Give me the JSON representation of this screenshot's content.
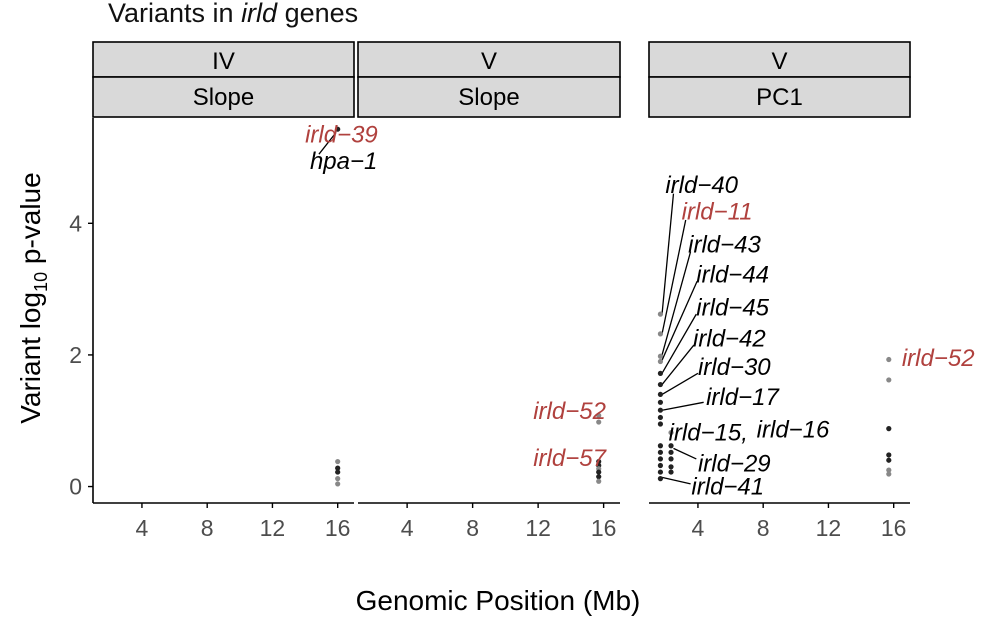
{
  "title": {
    "prefix": "Variants in ",
    "italic": "irld",
    "suffix": " genes"
  },
  "colors": {
    "highlight": "#b0413e",
    "point_dark": "#222222",
    "point_light": "#888888",
    "strip_fill": "#d9d9d9",
    "text": "#000000",
    "tick_text": "#4d4d4d"
  },
  "chart_data": {
    "type": "scatter",
    "ylabel_parts": [
      "Variant log",
      "10",
      " p-value"
    ],
    "xlabel": "Genomic Position (Mb)",
    "x_ticks": [
      4,
      8,
      12,
      16
    ],
    "y_ticks": [
      0,
      2,
      4
    ],
    "xlim": [
      1,
      17
    ],
    "ylim": [
      -0.25,
      5.6
    ],
    "grid": false,
    "facets": [
      {
        "strip_top": "IV",
        "strip_bottom": "Slope",
        "points": [
          {
            "x": 16.0,
            "y": 5.43,
            "shade": "dark"
          },
          {
            "x": 16.0,
            "y": 0.38,
            "shade": "light"
          },
          {
            "x": 16.0,
            "y": 0.28,
            "shade": "dark"
          },
          {
            "x": 16.0,
            "y": 0.22,
            "shade": "dark"
          },
          {
            "x": 16.0,
            "y": 0.12,
            "shade": "light"
          },
          {
            "x": 16.0,
            "y": 0.04,
            "shade": "light"
          }
        ],
        "labels": [
          {
            "text": "irld−39",
            "color": "highlight",
            "x": 14.0,
            "y": 5.35
          },
          {
            "text": "hpa−1",
            "color": "black",
            "x": 14.3,
            "y": 4.95,
            "lx": 15.9,
            "ly": 5.38,
            "lx2": 14.85,
            "ly2": 5.05
          }
        ]
      },
      {
        "strip_top": "V",
        "strip_bottom": "Slope",
        "points": [
          {
            "x": 15.7,
            "y": 1.08,
            "shade": "light"
          },
          {
            "x": 15.7,
            "y": 0.98,
            "shade": "light"
          },
          {
            "x": 15.7,
            "y": 0.38,
            "shade": "dark"
          },
          {
            "x": 15.7,
            "y": 0.32,
            "shade": "dark"
          },
          {
            "x": 15.7,
            "y": 0.27,
            "shade": "light"
          },
          {
            "x": 15.7,
            "y": 0.22,
            "shade": "dark"
          },
          {
            "x": 15.7,
            "y": 0.15,
            "shade": "dark"
          },
          {
            "x": 15.7,
            "y": 0.08,
            "shade": "light"
          }
        ],
        "labels": [
          {
            "text": "irld−52",
            "color": "highlight",
            "x": 11.7,
            "y": 1.15
          },
          {
            "text": "irld−57",
            "color": "highlight",
            "x": 11.7,
            "y": 0.43
          }
        ]
      },
      {
        "strip_top": "V",
        "strip_bottom": "PC1",
        "points": [
          {
            "x": 1.7,
            "y": 2.62,
            "shade": "light"
          },
          {
            "x": 1.7,
            "y": 2.32,
            "shade": "light"
          },
          {
            "x": 1.7,
            "y": 1.98,
            "shade": "light"
          },
          {
            "x": 1.7,
            "y": 1.9,
            "shade": "light"
          },
          {
            "x": 1.7,
            "y": 1.72,
            "shade": "dark"
          },
          {
            "x": 1.7,
            "y": 1.55,
            "shade": "dark"
          },
          {
            "x": 1.7,
            "y": 1.4,
            "shade": "dark"
          },
          {
            "x": 1.7,
            "y": 1.28,
            "shade": "dark"
          },
          {
            "x": 1.7,
            "y": 1.16,
            "shade": "dark"
          },
          {
            "x": 1.7,
            "y": 1.05,
            "shade": "dark"
          },
          {
            "x": 1.7,
            "y": 0.95,
            "shade": "dark"
          },
          {
            "x": 1.7,
            "y": 0.62,
            "shade": "dark"
          },
          {
            "x": 1.7,
            "y": 0.52,
            "shade": "dark"
          },
          {
            "x": 1.7,
            "y": 0.42,
            "shade": "dark"
          },
          {
            "x": 1.7,
            "y": 0.32,
            "shade": "dark"
          },
          {
            "x": 1.7,
            "y": 0.22,
            "shade": "dark"
          },
          {
            "x": 1.7,
            "y": 0.12,
            "shade": "dark"
          },
          {
            "x": 2.35,
            "y": 0.82,
            "shade": "light"
          },
          {
            "x": 2.35,
            "y": 0.62,
            "shade": "dark"
          },
          {
            "x": 2.35,
            "y": 0.52,
            "shade": "dark"
          },
          {
            "x": 2.35,
            "y": 0.42,
            "shade": "dark"
          },
          {
            "x": 2.35,
            "y": 0.3,
            "shade": "dark"
          },
          {
            "x": 2.35,
            "y": 0.22,
            "shade": "dark"
          },
          {
            "x": 15.7,
            "y": 1.93,
            "shade": "light"
          },
          {
            "x": 15.7,
            "y": 1.62,
            "shade": "light"
          },
          {
            "x": 15.7,
            "y": 0.88,
            "shade": "dark"
          },
          {
            "x": 15.7,
            "y": 0.48,
            "shade": "dark"
          },
          {
            "x": 15.7,
            "y": 0.4,
            "shade": "dark"
          },
          {
            "x": 15.7,
            "y": 0.25,
            "shade": "light"
          },
          {
            "x": 15.7,
            "y": 0.19,
            "shade": "light"
          }
        ],
        "labels": [
          {
            "text": "irld−40",
            "color": "black",
            "x": 2.0,
            "y": 4.58,
            "lx": 1.8,
            "ly": 2.62,
            "lx2": 2.5,
            "ly2": 4.45
          },
          {
            "text": "irld−11",
            "color": "highlight",
            "x": 3.0,
            "y": 4.18,
            "lx": 1.8,
            "ly": 2.32,
            "lx2": 3.25,
            "ly2": 4.05
          },
          {
            "text": "irld−43",
            "color": "black",
            "x": 3.4,
            "y": 3.68,
            "lx": 1.8,
            "ly": 2.0,
            "lx2": 3.55,
            "ly2": 3.57
          },
          {
            "text": "irld−44",
            "color": "black",
            "x": 3.9,
            "y": 3.22,
            "lx": 1.8,
            "ly": 1.92,
            "lx2": 3.95,
            "ly2": 3.12
          },
          {
            "text": "irld−45",
            "color": "black",
            "x": 3.9,
            "y": 2.72,
            "lx": 1.8,
            "ly": 1.72,
            "lx2": 3.9,
            "ly2": 2.62
          },
          {
            "text": "irld−42",
            "color": "black",
            "x": 3.7,
            "y": 2.25,
            "lx": 1.8,
            "ly": 1.55,
            "lx2": 3.75,
            "ly2": 2.15
          },
          {
            "text": "irld−30",
            "color": "black",
            "x": 4.0,
            "y": 1.82,
            "lx": 1.8,
            "ly": 1.4,
            "lx2": 4.0,
            "ly2": 1.72
          },
          {
            "text": "irld−17",
            "color": "black",
            "x": 4.5,
            "y": 1.36,
            "lx": 1.8,
            "ly": 1.16,
            "lx2": 4.35,
            "ly2": 1.28
          },
          {
            "text": "irld−15,",
            "color": "black",
            "x": 2.2,
            "y": 0.82
          },
          {
            "text": "irld−16",
            "color": "black",
            "x": 7.6,
            "y": 0.87
          },
          {
            "text": "irld−29",
            "color": "black",
            "x": 4.0,
            "y": 0.35,
            "lx": 2.5,
            "ly": 0.58,
            "lx2": 3.9,
            "ly2": 0.42
          },
          {
            "text": "irld−41",
            "color": "black",
            "x": 3.6,
            "y": 0.0,
            "lx": 1.8,
            "ly": 0.14,
            "lx2": 3.55,
            "ly2": 0.04
          },
          {
            "text": "irld−52",
            "color": "highlight",
            "x": 16.5,
            "y": 1.95
          }
        ]
      }
    ]
  }
}
